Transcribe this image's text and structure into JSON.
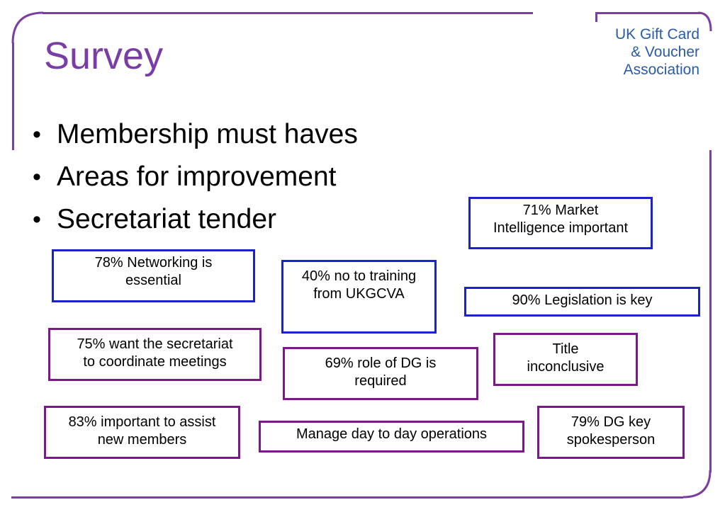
{
  "slide": {
    "title": "Survey",
    "logo_lines": [
      "UK Gift Card",
      "& Voucher",
      "Association"
    ],
    "bullets": [
      "Membership must haves",
      "Areas for improvement",
      "Secretariat tender"
    ],
    "boxes": [
      {
        "id": "market-intelligence",
        "text": "71% Market\nIntelligence important",
        "color": "#1a22cc"
      },
      {
        "id": "networking",
        "text": "78% Networking is\nessential",
        "color": "#1a22cc"
      },
      {
        "id": "training",
        "text": "40% no to training\nfrom UKGCVA",
        "color": "#1a22cc"
      },
      {
        "id": "legislation",
        "text": "90% Legislation is key",
        "color": "#1a22cc"
      },
      {
        "id": "coordinate-meetings",
        "text": "75% want the secretariat\nto coordinate  meetings",
        "color": "#7a1a86"
      },
      {
        "id": "dg-role",
        "text": "69% role of DG is\nrequired",
        "color": "#7a1a86"
      },
      {
        "id": "title-inconclusive",
        "text": "Title\ninconclusive",
        "color": "#7a1a86"
      },
      {
        "id": "assist-members",
        "text": "83% important to assist\nnew members",
        "color": "#7a1a86"
      },
      {
        "id": "day-to-day",
        "text": "Manage day to day operations",
        "color": "#7a1a86"
      },
      {
        "id": "dg-spokesperson",
        "text": "79% DG key\nspokesperson",
        "color": "#7a1a86"
      }
    ],
    "colors": {
      "frame": "#7b3fa0",
      "title": "#7a3da6",
      "logo": "#2a5aa8",
      "box_blue": "#1a22cc",
      "box_purple": "#7a1a86"
    }
  }
}
